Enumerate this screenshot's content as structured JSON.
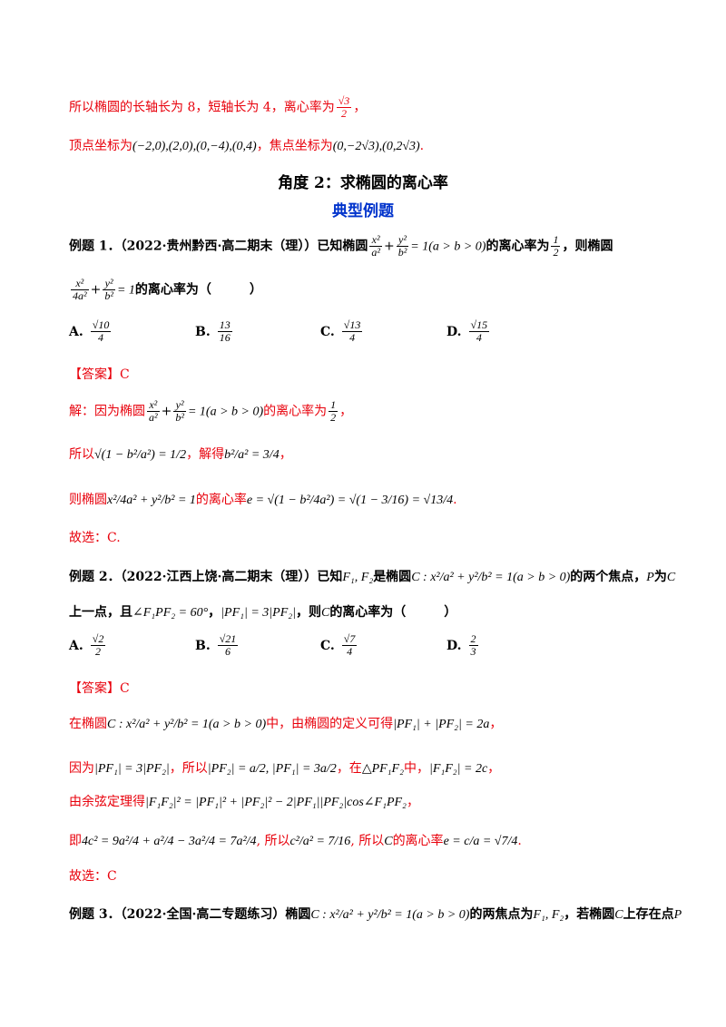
{
  "intro": {
    "line1_text": "所以椭圆的长轴长为 8，短轴长为 4，离心率为",
    "line1_frac": {
      "num": "√3",
      "den": "2"
    },
    "line1_tail": "，",
    "line2_text": "顶点坐标为",
    "line2_math": "(−2,0),(2,0),(0,−4),(0,4)",
    "line2_mid": "，焦点坐标为",
    "line2_math2": "(0,−2√3),(0,2√3)",
    "line2_tail": "."
  },
  "section_title": "角度 2：求椭圆的离心率",
  "subsection_title": "典型例题",
  "ex1": {
    "label": "例题 1．",
    "source": "（2022·贵州黔西·高二期末（理））",
    "q_a": "已知椭圆",
    "q_eq_frac1": {
      "num": "x²",
      "den": "a²"
    },
    "q_eq_frac2": {
      "num": "y²",
      "den": "b²"
    },
    "q_eq_tail": "= 1(a > b > 0)",
    "q_b": "的离心率为",
    "q_e": {
      "num": "1",
      "den": "2"
    },
    "q_c": "，则椭圆",
    "q2_frac1": {
      "num": "x²",
      "den": "4a²"
    },
    "q2_frac2": {
      "num": "y²",
      "den": "b²"
    },
    "q2_tail": "= 1",
    "q2_text": "的离心率为（　　　）",
    "options": [
      {
        "label": "A.",
        "num": "√10",
        "den": "4"
      },
      {
        "label": "B.",
        "num": "13",
        "den": "16"
      },
      {
        "label": "C.",
        "num": "√13",
        "den": "4"
      },
      {
        "label": "D.",
        "num": "√15",
        "den": "4"
      }
    ],
    "answer": "【答案】C",
    "sol1_a": "解：因为椭圆",
    "sol1_b": "的离心率为",
    "sol1_c": "，",
    "sol2_a": "所以",
    "sol2_m": "√(1 − b²/a²) = 1/2",
    "sol2_b": "，解得",
    "sol2_m2": "b²/a² = 3/4",
    "sol2_c": "，",
    "sol3_a": "则椭圆",
    "sol3_m1": "x²/4a² + y²/b² = 1",
    "sol3_b": "的离心率",
    "sol3_m2": "e = √(1 − b²/4a²) = √(1 − 3/16) = √13/4",
    "sol3_c": ".",
    "end": "故选：C."
  },
  "ex2": {
    "label": "例题 2．",
    "source": "（2022·江西上饶·高二期末（理））",
    "q_a": "已知",
    "q_m1": "F₁, F₂",
    "q_b": "是椭圆",
    "q_m2": "C : x²/a² + y²/b² = 1(a > b > 0)",
    "q_c": "的两个焦点，",
    "q_m3": "P",
    "q_d": "为",
    "q_m4": "C",
    "q2_a": "上一点，且",
    "q2_m1": "∠F₁PF₂ = 60°",
    "q2_b": "，",
    "q2_m2": "|PF₁| = 3|PF₂|",
    "q2_c": "，则",
    "q2_m3": "C",
    "q2_d": "的离心率为（　　　）",
    "options": [
      {
        "label": "A.",
        "num": "√2",
        "den": "2"
      },
      {
        "label": "B.",
        "num": "√21",
        "den": "6"
      },
      {
        "label": "C.",
        "num": "√7",
        "den": "4"
      },
      {
        "label": "D.",
        "num": "2",
        "den": "3"
      }
    ],
    "answer": "【答案】C",
    "s1_a": "在椭圆",
    "s1_m": "C : x²/a² + y²/b² = 1(a > b > 0)",
    "s1_b": "中，由椭圆的定义可得",
    "s1_m2": "|PF₁| + |PF₂| = 2a",
    "s1_c": "，",
    "s2_a": "因为",
    "s2_m": "|PF₁| = 3|PF₂|",
    "s2_b": "，所以",
    "s2_m2": "|PF₂| = a/2, |PF₁| = 3a/2",
    "s2_c": "，在",
    "s2_m3": "△PF₁F₂",
    "s2_d": "中，",
    "s2_m4": "|F₁F₂| = 2c",
    "s2_e": "，",
    "s3_a": "由余弦定理得",
    "s3_m": "|F₁F₂|² = |PF₁|² + |PF₂|² − 2|PF₁||PF₂|cos∠F₁PF₂",
    "s3_b": "，",
    "s4_a": "即",
    "s4_m": "4c² = 9a²/4 + a²/4 − 3a²/4 = 7a²/4",
    "s4_b": ", 所以",
    "s4_m2": "c²/a² = 7/16",
    "s4_c": ", 所以",
    "s4_m3": "C",
    "s4_d": "的离心率",
    "s4_m4": "e = c/a = √7/4",
    "s4_e": ".",
    "end": "故选：C"
  },
  "ex3": {
    "label": "例题 3．",
    "source": "（2022·全国·高二专题练习）",
    "q_a": "椭圆",
    "q_m": "C : x²/a² + y²/b² = 1(a > b > 0)",
    "q_b": "的两焦点为",
    "q_m2": "F₁, F₂",
    "q_c": "，若椭圆",
    "q_m3": "C",
    "q_d": "上存在点",
    "q_m4": "P"
  }
}
